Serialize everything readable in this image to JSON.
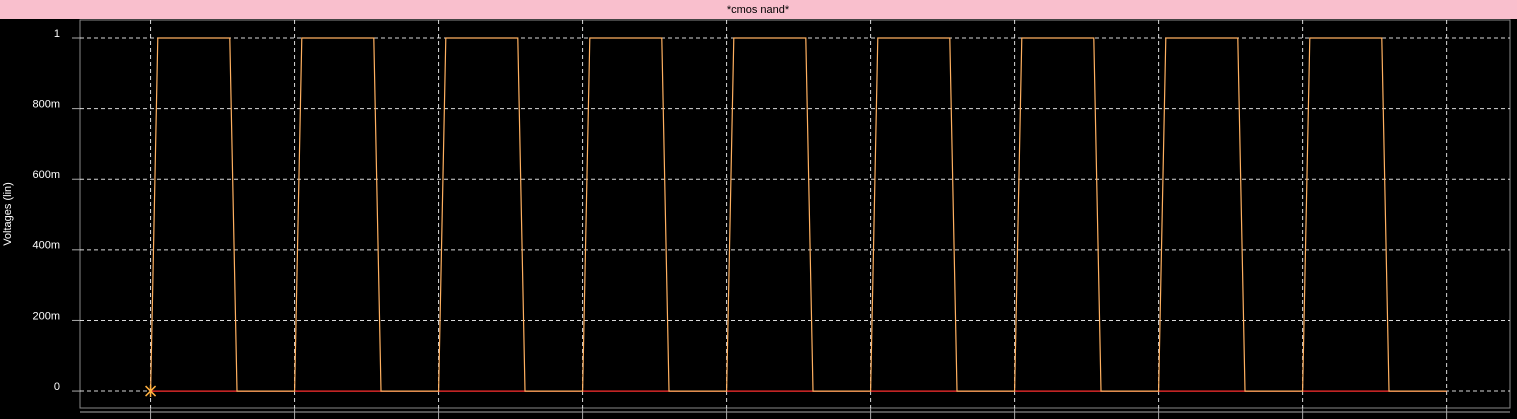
{
  "chart_data": {
    "type": "line",
    "title": "*cmos nand*",
    "y_label": "Voltages (lin)",
    "series": [
      {
        "color": "#ffb060",
        "x": [
          0,
          0.05,
          0.55,
          0.6,
          1,
          1.05,
          1.55,
          1.6,
          2,
          2.05,
          2.55,
          2.6,
          3,
          3.05,
          3.55,
          3.6,
          4,
          4.05,
          4.55,
          4.6,
          5,
          5.05,
          5.55,
          5.6,
          6,
          6.05,
          6.55,
          6.6,
          7,
          7.05,
          7.55,
          7.6,
          8,
          8.05,
          8.55,
          8.6,
          9
        ],
        "values": [
          0,
          1,
          1,
          0,
          0,
          1,
          1,
          0,
          0,
          1,
          1,
          0,
          0,
          1,
          1,
          0,
          0,
          1,
          1,
          0,
          0,
          1,
          1,
          0,
          0,
          1,
          1,
          0,
          0,
          1,
          1,
          0,
          0,
          1,
          1,
          0,
          0
        ]
      },
      {
        "color": "#ff3030",
        "x": [
          0,
          9
        ],
        "values": [
          0,
          0
        ]
      }
    ],
    "xlim": [
      -0.49,
      9.44
    ],
    "xticks": [
      0,
      1,
      2,
      3,
      4,
      5,
      6,
      7,
      8,
      9
    ],
    "ylim": [
      -0.048,
      1.051
    ],
    "yticks": [
      0,
      {
        "value": 0.2,
        "label": "200m"
      },
      {
        "value": 0.4,
        "label": "400m"
      },
      {
        "value": 0.6,
        "label": "600m"
      },
      {
        "value": 0.8,
        "label": "800m"
      },
      1
    ],
    "grid": true
  }
}
